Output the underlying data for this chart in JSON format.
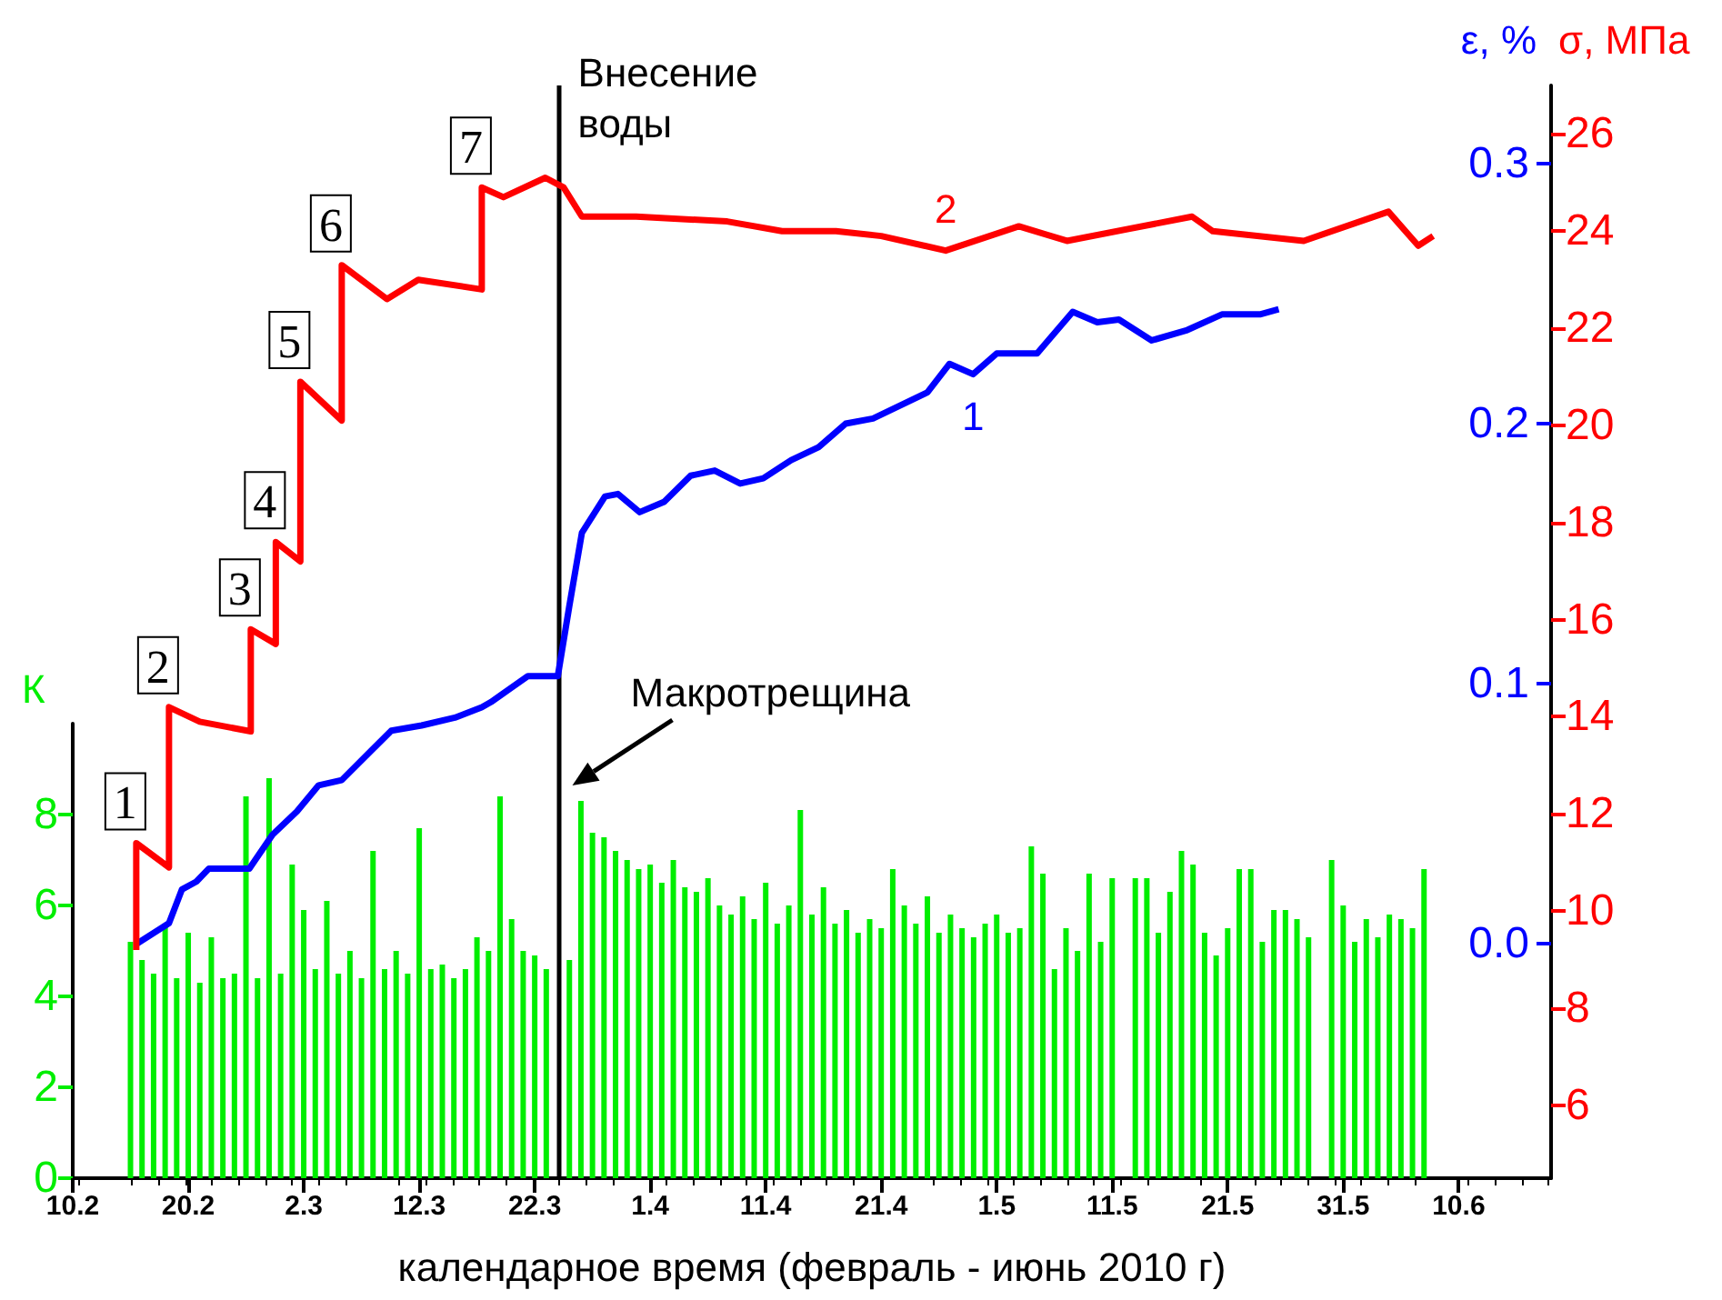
{
  "chart_data": {
    "type": "bar",
    "xlabel": "календарное время (февраль - июнь 2010 г)",
    "ylabel": "К",
    "y2label": "ε, %",
    "y3label": "σ, МПа",
    "xlim": [
      "2010-02-10",
      "2010-06-18"
    ],
    "xticks": [
      {
        "value": "2010-02-10",
        "label": "10.2"
      },
      {
        "value": "2010-02-20",
        "label": "20.2"
      },
      {
        "value": "2010-03-02",
        "label": "2.3"
      },
      {
        "value": "2010-03-12",
        "label": "12.3"
      },
      {
        "value": "2010-03-22",
        "label": "22.3"
      },
      {
        "value": "2010-04-01",
        "label": "1.4"
      },
      {
        "value": "2010-04-11",
        "label": "11.4"
      },
      {
        "value": "2010-04-21",
        "label": "21.4"
      },
      {
        "value": "2010-05-01",
        "label": "1.5"
      },
      {
        "value": "2010-05-11",
        "label": "11.5"
      },
      {
        "value": "2010-05-21",
        "label": "21.5"
      },
      {
        "value": "2010-05-31",
        "label": "31.5"
      },
      {
        "value": "2010-06-10",
        "label": "10.6"
      }
    ],
    "ylim": [
      0,
      10
    ],
    "yticks": [
      0,
      2,
      4,
      6,
      8
    ],
    "y2lim": [
      -0.09,
      0.33
    ],
    "y2ticks": [
      {
        "value": 0,
        "label": "0.0"
      },
      0.1,
      0.2,
      0.3
    ],
    "y3lim": [
      4.5,
      27
    ],
    "y3ticks": [
      6,
      8,
      10,
      12,
      14,
      16,
      18,
      20,
      22,
      24,
      26
    ],
    "series": [
      {
        "axis": "y",
        "color": "#00ee00",
        "x": [
          "2010-02-15",
          "2010-02-16",
          "2010-02-17",
          "2010-02-18",
          "2010-02-19",
          "2010-02-20",
          "2010-02-21",
          "2010-02-22",
          "2010-02-23",
          "2010-02-24",
          "2010-02-25",
          "2010-02-26",
          "2010-02-27",
          "2010-02-28",
          "2010-03-01",
          "2010-03-02",
          "2010-03-03",
          "2010-03-04",
          "2010-03-05",
          "2010-03-06",
          "2010-03-07",
          "2010-03-08",
          "2010-03-09",
          "2010-03-10",
          "2010-03-11",
          "2010-03-12",
          "2010-03-13",
          "2010-03-14",
          "2010-03-15",
          "2010-03-16",
          "2010-03-17",
          "2010-03-18",
          "2010-03-19",
          "2010-03-20",
          "2010-03-21",
          "2010-03-22",
          "2010-03-23",
          "2010-03-24",
          "2010-03-25",
          "2010-03-26",
          "2010-03-27",
          "2010-03-28",
          "2010-03-29",
          "2010-03-30",
          "2010-03-31",
          "2010-04-01",
          "2010-04-02",
          "2010-04-03",
          "2010-04-04",
          "2010-04-05",
          "2010-04-06",
          "2010-04-07",
          "2010-04-08",
          "2010-04-09",
          "2010-04-10",
          "2010-04-11",
          "2010-04-12",
          "2010-04-13",
          "2010-04-14",
          "2010-04-15",
          "2010-04-16",
          "2010-04-17",
          "2010-04-18",
          "2010-04-19",
          "2010-04-20",
          "2010-04-21",
          "2010-04-22",
          "2010-04-23",
          "2010-04-24",
          "2010-04-25",
          "2010-04-26",
          "2010-04-27",
          "2010-04-28",
          "2010-04-29",
          "2010-04-30",
          "2010-05-01",
          "2010-05-02",
          "2010-05-03",
          "2010-05-04",
          "2010-05-05",
          "2010-05-06",
          "2010-05-07",
          "2010-05-08",
          "2010-05-09",
          "2010-05-10",
          "2010-05-11",
          "2010-05-12",
          "2010-05-13",
          "2010-05-14",
          "2010-05-15",
          "2010-05-16",
          "2010-05-17",
          "2010-05-18",
          "2010-05-19",
          "2010-05-20",
          "2010-05-21",
          "2010-05-22",
          "2010-05-23",
          "2010-05-24",
          "2010-05-25",
          "2010-05-26",
          "2010-05-27",
          "2010-05-28",
          "2010-05-29",
          "2010-05-30",
          "2010-05-31",
          "2010-06-01",
          "2010-06-02",
          "2010-06-03",
          "2010-06-04",
          "2010-06-05",
          "2010-06-06",
          "2010-06-07"
        ],
        "values": [
          5.2,
          4.8,
          4.5,
          5.6,
          4.4,
          5.4,
          4.3,
          5.3,
          4.4,
          4.5,
          8.4,
          4.4,
          8.8,
          4.5,
          6.9,
          5.9,
          4.6,
          6.1,
          4.5,
          5.0,
          4.4,
          7.2,
          4.6,
          5.0,
          4.5,
          7.7,
          4.6,
          4.7,
          4.4,
          4.6,
          5.3,
          5.0,
          8.4,
          5.7,
          5.0,
          4.9,
          4.6,
          null,
          4.8,
          8.3,
          7.6,
          7.5,
          7.2,
          7.0,
          6.8,
          6.9,
          6.5,
          7.0,
          6.4,
          6.3,
          6.6,
          6.0,
          5.8,
          6.2,
          5.7,
          6.5,
          5.6,
          6.0,
          8.1,
          5.8,
          6.4,
          5.6,
          5.9,
          5.4,
          5.7,
          5.5,
          6.8,
          6.0,
          5.6,
          6.2,
          5.4,
          5.8,
          5.5,
          5.3,
          5.6,
          5.8,
          5.4,
          5.5,
          7.3,
          6.7,
          4.6,
          5.5,
          5.0,
          6.7,
          5.2,
          6.6,
          null,
          6.6,
          6.6,
          5.4,
          6.3,
          7.2,
          6.9,
          5.4,
          4.9,
          5.5,
          6.8,
          6.8,
          5.2,
          5.9,
          5.9,
          5.7,
          5.3,
          null,
          7.0,
          6.0,
          5.2,
          5.7,
          5.3,
          5.8,
          5.7,
          5.5,
          6.8
        ]
      },
      {
        "type": "line",
        "axis": "y2",
        "name": "1",
        "color": "#0000ff",
        "x": [
          "2010-02-15T12:00",
          "2010-02-18T08:00",
          "2010-02-19T11:00",
          "2010-02-20T17:00",
          "2010-02-21T19:00",
          "2010-02-25T07:00",
          "2010-02-27T07:00",
          "2010-03-01T10:00",
          "2010-03-03T07:00",
          "2010-03-05T07:00",
          "2010-03-08T00:00",
          "2010-03-09T14:00",
          "2010-03-12T05:00",
          "2010-03-15T02:00",
          "2010-03-17T10:00",
          "2010-03-18T05:00",
          "2010-03-21T10:00",
          "2010-03-24T00:00",
          "2010-03-25T00:00",
          "2010-03-26T02:00",
          "2010-03-28T02:00",
          "2010-03-29T05:00",
          "2010-03-31T02:00",
          "2010-04-02T05:00",
          "2010-04-04T12:00",
          "2010-04-06T14:00",
          "2010-04-08T19:00",
          "2010-04-10T19:00",
          "2010-04-13T05:00",
          "2010-04-15T14:00",
          "2010-04-17T22:00",
          "2010-04-20T07:00",
          "2010-04-25T00:00",
          "2010-04-26T22:00",
          "2010-04-28T23:00",
          "2010-05-01T00:00",
          "2010-05-04T12:00",
          "2010-05-07T14:00",
          "2010-05-09T17:00",
          "2010-05-11T14:00",
          "2010-05-14T10:00",
          "2010-05-17T12:00",
          "2010-05-20T12:00",
          "2010-05-23T19:00",
          "2010-05-25T10:00"
        ],
        "values": [
          0.0,
          0.008,
          0.021,
          0.024,
          0.029,
          0.029,
          0.042,
          0.051,
          0.061,
          0.063,
          0.075,
          0.082,
          0.084,
          0.087,
          0.091,
          0.093,
          0.103,
          0.103,
          0.13,
          0.158,
          0.172,
          0.173,
          0.166,
          0.17,
          0.18,
          0.182,
          0.177,
          0.179,
          0.186,
          0.191,
          0.2,
          0.202,
          0.212,
          0.223,
          0.219,
          0.227,
          0.227,
          0.243,
          0.239,
          0.24,
          0.232,
          0.236,
          0.242,
          0.242,
          0.244
        ]
      },
      {
        "type": "line",
        "axis": "y3",
        "name": "2",
        "color": "#ff0000",
        "x": [
          "2010-02-15T12:00",
          "2010-02-15T12:00",
          "2010-02-18T08:00",
          "2010-02-18T08:00",
          "2010-02-21T00:00",
          "2010-02-25T10:00",
          "2010-02-25T10:00",
          "2010-02-27T14:00",
          "2010-02-27T14:00",
          "2010-03-01T17:00",
          "2010-03-01T17:00",
          "2010-03-05T07:00",
          "2010-03-05T07:00",
          "2010-03-09T05:00",
          "2010-03-11T22:00",
          "2010-03-17T10:00",
          "2010-03-17T10:00",
          "2010-03-19T07:00",
          "2010-03-22T22:00",
          "2010-03-24T12:00",
          "2010-03-26T02:00",
          "2010-03-30T19:00",
          "2010-04-07T16:00",
          "2010-04-12T10:00",
          "2010-04-17T02:00",
          "2010-04-21T00:00",
          "2010-04-26T14:00",
          "2010-05-02T22:00",
          "2010-05-07T02:00",
          "2010-05-17T22:00",
          "2010-05-19T17:00",
          "2010-05-27T14:00",
          "2010-06-03T22:00",
          "2010-06-06T12:00",
          "2010-06-07T19:00"
        ],
        "values": [
          9.2,
          11.4,
          10.9,
          14.2,
          13.9,
          13.7,
          15.8,
          15.5,
          17.6,
          17.2,
          20.9,
          20.1,
          23.3,
          22.6,
          23.0,
          22.8,
          24.9,
          24.7,
          25.1,
          24.9,
          24.3,
          24.3,
          24.2,
          24.0,
          24.0,
          23.9,
          23.6,
          24.1,
          23.8,
          24.3,
          24.0,
          23.8,
          24.4,
          23.7,
          23.9
        ]
      }
    ],
    "ref_lines": [
      {
        "axis": "x",
        "value": "2010-03-24",
        "label": "Внесение воды",
        "color": "#000000"
      }
    ],
    "annotations": [
      "1",
      "2",
      "3",
      "4",
      "5",
      "6",
      "7",
      "Макротрещина"
    ]
  }
}
